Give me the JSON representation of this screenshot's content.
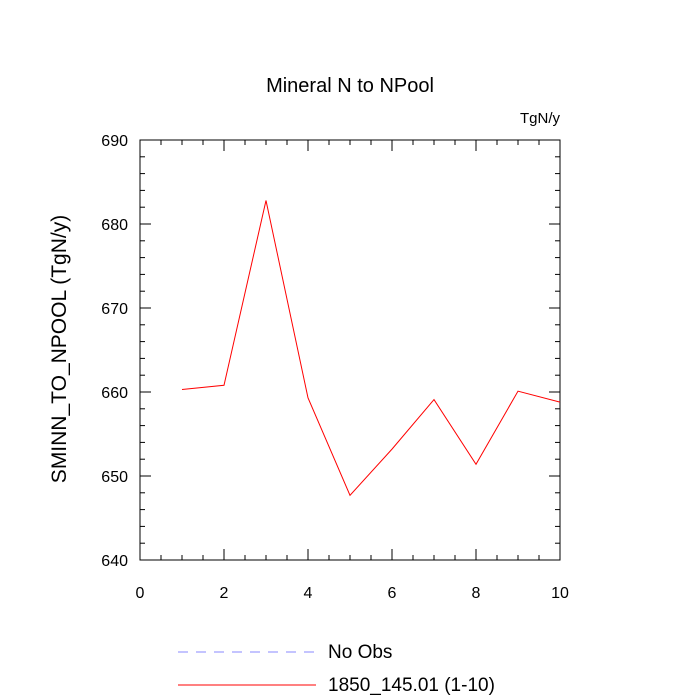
{
  "chart_data": {
    "type": "line",
    "title": "Mineral N to NPool",
    "units_label": "TgN/y",
    "ylabel": "SMINN_TO_NPOOL  (TgN/y)",
    "xlabel": "",
    "xlim": [
      0,
      10
    ],
    "ylim": [
      640,
      690
    ],
    "x_ticks": [
      "0",
      "2",
      "4",
      "6",
      "8",
      "10"
    ],
    "y_ticks": [
      "640",
      "650",
      "660",
      "670",
      "680",
      "690"
    ],
    "grid": false,
    "legend_position": "bottom",
    "series": [
      {
        "name": "1850_145.01 (1-10)",
        "color": "#ff0000",
        "style": "solid",
        "x": [
          1,
          2,
          3,
          4,
          5,
          6,
          7,
          8,
          9,
          10
        ],
        "y": [
          660.3,
          660.8,
          682.8,
          659.3,
          647.7,
          653.2,
          659.1,
          651.4,
          660.1,
          658.8
        ]
      }
    ],
    "legend": [
      {
        "label": "No Obs",
        "color": "#8888ff",
        "style": "dashed"
      },
      {
        "label": "1850_145.01 (1-10)",
        "color": "#ff0000",
        "style": "solid"
      }
    ]
  }
}
